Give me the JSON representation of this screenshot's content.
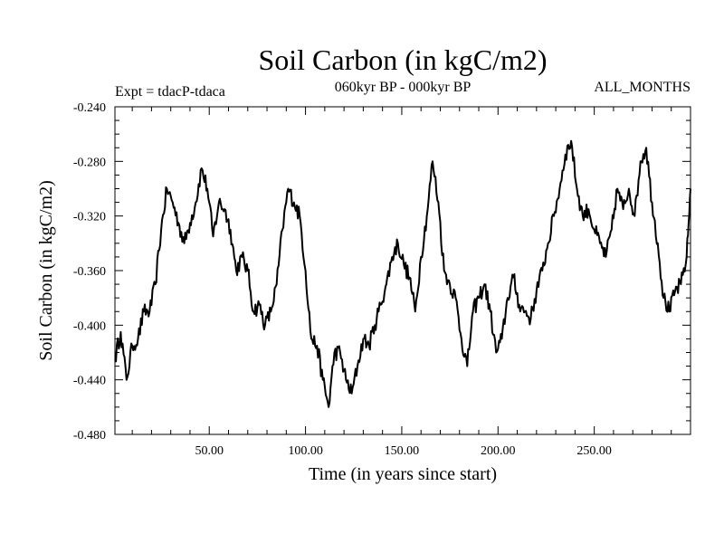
{
  "chart_data": {
    "type": "line",
    "title": "Soil Carbon (in kgC/m2)",
    "subtitle": "060kyr BP - 000kyr BP",
    "experiment_label": "Expt = tdacP-tdaca",
    "months_label": "ALL_MONTHS",
    "xlabel": "Time (in years since start)",
    "ylabel": "Soil Carbon (in kgC/m2)",
    "xlim": [
      1,
      300
    ],
    "ylim": [
      -0.48,
      -0.24
    ],
    "x_ticks": [
      50,
      100,
      150,
      200,
      250
    ],
    "x_tick_labels": [
      "50.00",
      "100.00",
      "150.00",
      "200.00",
      "250.00"
    ],
    "y_ticks": [
      -0.24,
      -0.28,
      -0.32,
      -0.36,
      -0.4,
      -0.44,
      -0.48
    ],
    "y_tick_labels": [
      "-0.240",
      "-0.280",
      "-0.320",
      "-0.360",
      "-0.400",
      "-0.440",
      "-0.480"
    ],
    "grid": false,
    "series": [
      {
        "name": "Soil Carbon",
        "color": "#000000",
        "x": [
          1,
          4,
          7,
          10,
          13,
          16,
          19,
          22,
          25,
          28,
          31,
          34,
          37,
          40,
          43,
          46,
          49,
          52,
          55,
          58,
          61,
          64,
          67,
          70,
          73,
          76,
          79,
          82,
          85,
          88,
          91,
          94,
          97,
          100,
          103,
          106,
          109,
          112,
          115,
          118,
          121,
          124,
          127,
          130,
          133,
          136,
          139,
          142,
          145,
          148,
          151,
          154,
          157,
          160,
          163,
          166,
          169,
          172,
          175,
          178,
          181,
          184,
          187,
          190,
          193,
          196,
          199,
          202,
          205,
          208,
          211,
          214,
          217,
          220,
          223,
          226,
          229,
          232,
          235,
          238,
          241,
          244,
          247,
          250,
          253,
          256,
          259,
          262,
          265,
          268,
          271,
          274,
          277,
          280,
          283,
          286,
          289,
          292,
          295,
          298,
          300
        ],
        "values": [
          -0.425,
          -0.405,
          -0.44,
          -0.415,
          -0.41,
          -0.39,
          -0.39,
          -0.37,
          -0.33,
          -0.3,
          -0.31,
          -0.325,
          -0.34,
          -0.325,
          -0.31,
          -0.285,
          -0.3,
          -0.335,
          -0.31,
          -0.315,
          -0.33,
          -0.36,
          -0.35,
          -0.36,
          -0.39,
          -0.385,
          -0.4,
          -0.39,
          -0.37,
          -0.33,
          -0.3,
          -0.31,
          -0.32,
          -0.36,
          -0.41,
          -0.415,
          -0.44,
          -0.46,
          -0.42,
          -0.42,
          -0.44,
          -0.45,
          -0.43,
          -0.41,
          -0.415,
          -0.4,
          -0.385,
          -0.37,
          -0.35,
          -0.34,
          -0.355,
          -0.365,
          -0.39,
          -0.35,
          -0.32,
          -0.28,
          -0.31,
          -0.36,
          -0.37,
          -0.38,
          -0.41,
          -0.43,
          -0.39,
          -0.38,
          -0.37,
          -0.39,
          -0.42,
          -0.41,
          -0.38,
          -0.365,
          -0.385,
          -0.39,
          -0.395,
          -0.375,
          -0.36,
          -0.34,
          -0.32,
          -0.3,
          -0.275,
          -0.265,
          -0.3,
          -0.32,
          -0.315,
          -0.33,
          -0.34,
          -0.35,
          -0.33,
          -0.3,
          -0.315,
          -0.3,
          -0.32,
          -0.28,
          -0.27,
          -0.31,
          -0.34,
          -0.38,
          -0.39,
          -0.375,
          -0.37,
          -0.35,
          -0.3
        ]
      }
    ]
  }
}
